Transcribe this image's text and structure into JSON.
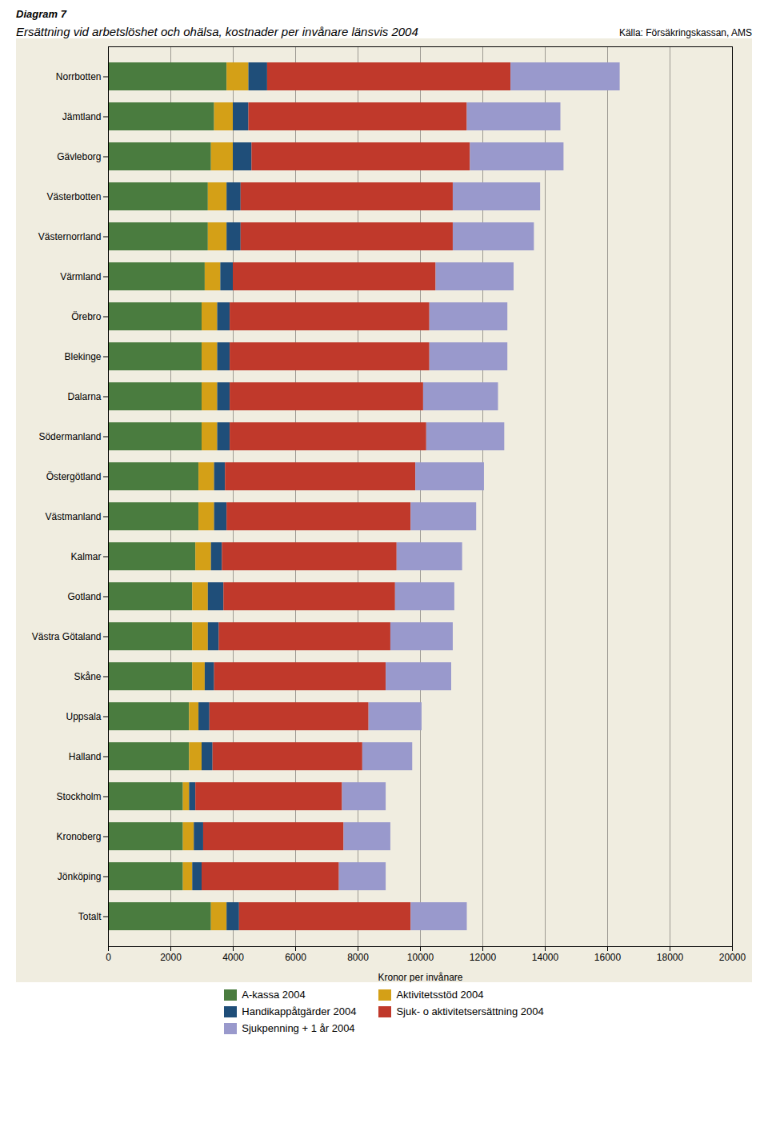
{
  "chart_data": {
    "type": "bar",
    "orientation": "horizontal",
    "stacked": true,
    "title": "Ersättning vid arbetslöshet och ohälsa, kostnader per invånare länsvis 2004",
    "annotations": [
      "Diagram 7",
      "Källa: Försäkringskassan, AMS"
    ],
    "xlabel": "Kronor per invånare",
    "categories": [
      "Norrbotten",
      "Jämtland",
      "Gävleborg",
      "Västerbotten",
      "Västernorrland",
      "Värmland",
      "Örebro",
      "Blekinge",
      "Dalarna",
      "Södermanland",
      "Östergötland",
      "Västmanland",
      "Kalmar",
      "Gotland",
      "Västra Götaland",
      "Skåne",
      "Uppsala",
      "Halland",
      "Stockholm",
      "Kronoberg",
      "Jönköping",
      "Totalt"
    ],
    "series": [
      {
        "name": "A-kassa 2004",
        "color": "#4a7c3f",
        "values": [
          3800,
          3400,
          3300,
          3200,
          3200,
          3100,
          3000,
          3000,
          3000,
          3000,
          2900,
          2900,
          2800,
          2700,
          2700,
          2700,
          2600,
          2600,
          2400,
          2400,
          2400,
          3300
        ]
      },
      {
        "name": "Aktivitetsstöd 2004",
        "color": "#d4a017",
        "values": [
          700,
          600,
          700,
          600,
          600,
          500,
          500,
          500,
          500,
          500,
          500,
          500,
          500,
          500,
          500,
          400,
          300,
          400,
          200,
          350,
          300,
          500
        ]
      },
      {
        "name": "Handikappåtgärder 2004",
        "color": "#1f4e79",
        "values": [
          600,
          500,
          600,
          450,
          450,
          400,
          400,
          400,
          400,
          400,
          350,
          400,
          350,
          500,
          350,
          300,
          350,
          350,
          200,
          300,
          300,
          400
        ]
      },
      {
        "name": "Sjuk- o aktivitetsersättning 2004",
        "color": "#c0392b",
        "values": [
          7800,
          7000,
          7000,
          6800,
          6800,
          6500,
          6400,
          6400,
          6200,
          6300,
          6100,
          5900,
          5600,
          5500,
          5500,
          5500,
          5100,
          4800,
          4700,
          4500,
          4400,
          5500
        ]
      },
      {
        "name": "Sjukpenning + 1 år 2004",
        "color": "#9999cc",
        "values": [
          3500,
          3000,
          3000,
          2800,
          2600,
          2500,
          2500,
          2500,
          2400,
          2500,
          2200,
          2100,
          2100,
          1900,
          2000,
          2100,
          1700,
          1600,
          1400,
          1500,
          1500,
          1800
        ]
      }
    ],
    "xlim": [
      0,
      20000
    ],
    "xticks": [
      0,
      2000,
      4000,
      6000,
      8000,
      10000,
      12000,
      14000,
      16000,
      18000,
      20000
    ],
    "grid": true,
    "legend": "bottom"
  }
}
